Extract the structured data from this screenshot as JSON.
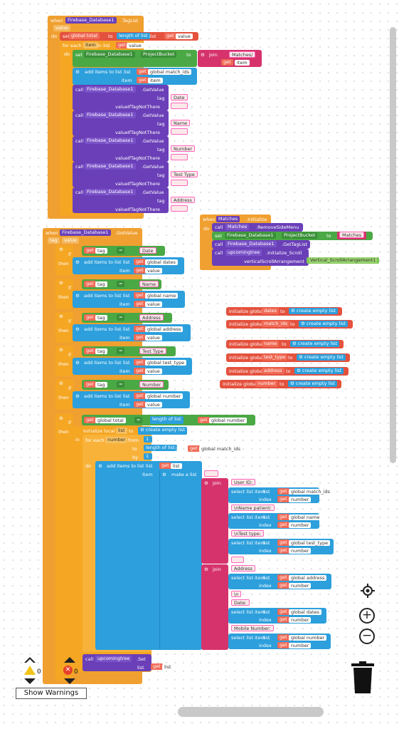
{
  "workspace": {
    "blockA": {
      "when": "when",
      "component": "Firebase_Database1",
      "event": ".TagList",
      "param": "value",
      "do": "do",
      "set": "set",
      "global_total": "global total",
      "to": "to",
      "length_of_list": "length of list",
      "list": "list",
      "get": "get",
      "value": "value",
      "for_each": "for each",
      "item": "item",
      "in_list": "in list",
      "set_prop": "set",
      "db": "Firebase_Database1",
      "project_bucket": "ProjectBucket",
      "join": "join",
      "matches_str": "Matches/",
      "add_items": "add items to list",
      "global_match_ids": "global match_ids",
      "call": "call",
      "get_value": ".GetValue",
      "tag": "tag",
      "value_if": "valueIfTagNotThere",
      "tags": [
        "Date",
        "Name",
        "Number",
        "Test Type",
        "Address"
      ]
    },
    "blockB": {
      "when": "when",
      "component": "Matches",
      "event": ".Initialize",
      "do": "do",
      "call1": "call",
      "matches": "Matches",
      "remove_menu": ".RemoveSideMenu",
      "set": "set",
      "db": "Firebase_Database1",
      "project_bucket": "ProjectBucket",
      "to": "to",
      "matches_str": "Matches",
      "call2": "call",
      "db2": "Firebase_Database1",
      "get_tag_list": ".GetTagList",
      "call3": "call",
      "upcoming": "upcomingtree",
      "init_scroll": ".Initialize_Scroll",
      "vsa_label": "verticalScrollArrangement",
      "vsa": "Vertical_ScrollArrangement1"
    },
    "globals": [
      {
        "init": "initialize global",
        "name": "dates",
        "to": "to",
        "create": "create empty list"
      },
      {
        "init": "initialize global",
        "name": "match_ids",
        "to": "to",
        "create": "create empty list"
      },
      {
        "init": "initialize global",
        "name": "name",
        "to": "to",
        "create": "create empty list"
      },
      {
        "init": "initialize global",
        "name": "test_type",
        "to": "to",
        "create": "create empty list"
      },
      {
        "init": "initialize global",
        "name": "address",
        "to": "to",
        "create": "create empty list"
      },
      {
        "init": "initialize global",
        "name": "number",
        "to": "to",
        "create": "create empty list"
      }
    ],
    "blockC": {
      "when": "when",
      "component": "Firebase_Database1",
      "event": ".GotValue",
      "p_tag": "tag",
      "p_value": "value",
      "if": "if",
      "then": "then",
      "get": "get",
      "tag": "tag",
      "eq": "=",
      "add_items": "add items to list",
      "list": "list",
      "item": "item",
      "value": "value",
      "conds": [
        {
          "str": "Date",
          "list": "global dates"
        },
        {
          "str": "Name",
          "list": "global name"
        },
        {
          "str": "Address",
          "list": "global address"
        },
        {
          "str": "Test Type",
          "list": "global test_type"
        },
        {
          "str": "Number",
          "list": "global number"
        }
      ],
      "global_total": "global total",
      "length_of_list": "length of list",
      "global_number": "global number",
      "init_local": "initialize local",
      "list_var": "list",
      "to": "to",
      "create": "create empty list",
      "in": "in",
      "for_each": "for each",
      "number": "number",
      "from": "from",
      "by": "by",
      "one": "1",
      "global_match_ids": "global match_ids",
      "make_list": "make a list",
      "join": "join",
      "select_item": "select list item",
      "index": "index",
      "str_userid": "User ID:",
      "str_name": "\\nName patient:",
      "str_testtype": "\\nTest type:",
      "str_address": "Address",
      "str_n": "\\n",
      "str_date": "Date:",
      "str_mobile": "Mobile Number:",
      "g_match_ids": "global match_ids",
      "g_name": "global name",
      "g_test_type": "global test_type",
      "g_address": "global address",
      "g_dates": "global dates",
      "g_number": "global number",
      "call": "call",
      "upcoming": "upcomingtree",
      "set": ".Set"
    }
  },
  "warnings": {
    "warn_count": "0",
    "error_count": "0",
    "button": "Show Warnings"
  },
  "colors": {
    "events": "#f0a030",
    "components": "#6a3fb8",
    "lists": "#2c9fdc",
    "text": "#d6336c",
    "variables": "#e4513d",
    "logic": "#4aa845"
  }
}
